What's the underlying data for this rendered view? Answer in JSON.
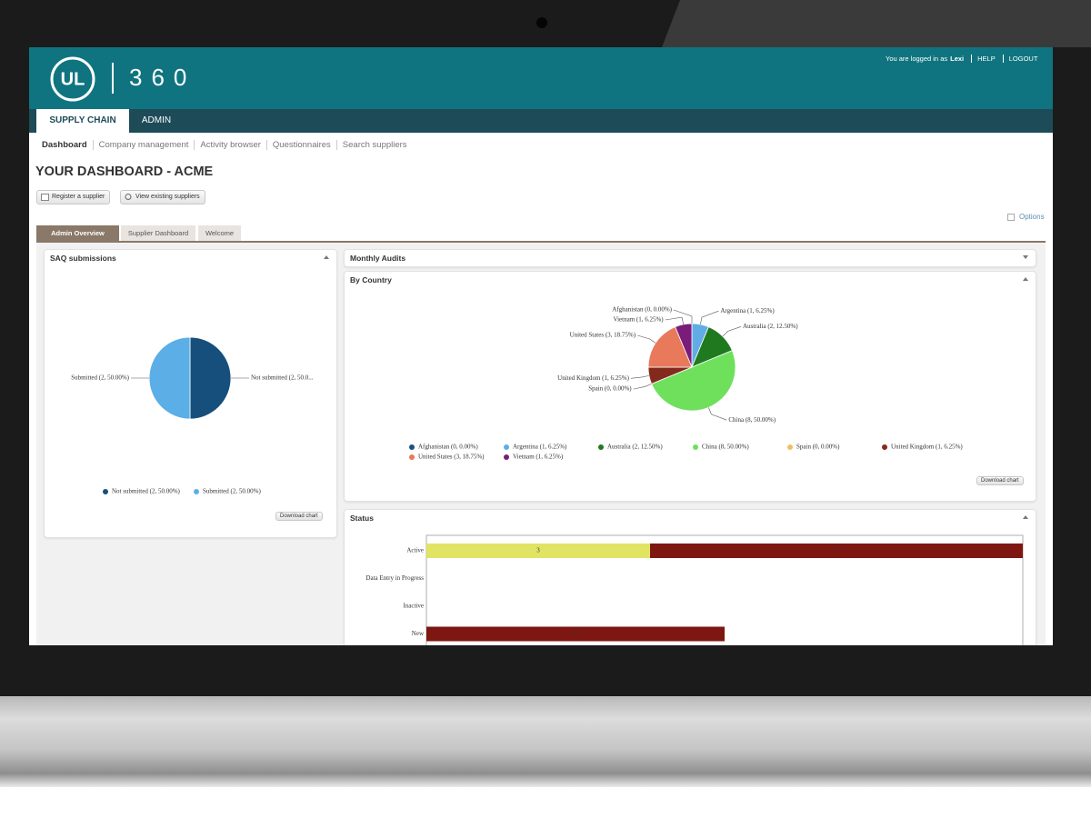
{
  "header": {
    "logo": "UL",
    "product": "360",
    "login_text": "You are logged in as",
    "user": "Lexi",
    "links": [
      "HELP",
      "LOGOUT"
    ]
  },
  "main_tabs": [
    "SUPPLY CHAIN",
    "ADMIN"
  ],
  "sub_nav": [
    "Dashboard",
    "Company management",
    "Activity browser",
    "Questionnaires",
    "Search suppliers"
  ],
  "page_title": "YOUR DASHBOARD - ACME",
  "buttons": [
    "Register a supplier",
    "View existing suppliers"
  ],
  "options": "Options",
  "dashboard_tabs": [
    "Admin Overview",
    "Supplier Dashboard",
    "Welcome"
  ],
  "monthly_audits": "Monthly Audits",
  "download": "Download chart",
  "chart_data": [
    {
      "type": "pie",
      "title": "SAQ submissions",
      "categories": [
        "Not submitted (2, 50.00%)",
        "Submitted (2, 50.00%)"
      ],
      "values": [
        2,
        2
      ],
      "value_labels": [
        "Not submitted (2, 50.0...",
        "Submitted (2, 50.00%)"
      ],
      "colors": [
        "#174f7c",
        "#5caee6"
      ],
      "legend": "bottom"
    },
    {
      "type": "pie",
      "title": "By Country",
      "categories": [
        "Afghanistan (0, 0.00%)",
        "Argentina (1, 6.25%)",
        "Australia (2, 12.50%)",
        "China (8, 50.00%)",
        "Spain (0, 0.00%)",
        "United Kingdom (1, 6.25%)",
        "United States (3, 18.75%)",
        "Vietnam (1, 6.25%)"
      ],
      "values": [
        0,
        1,
        2,
        8,
        0,
        1,
        3,
        1
      ],
      "colors": [
        "#1c4f7d",
        "#62ace6",
        "#1f7a1f",
        "#6fe05c",
        "#eec160",
        "#832a1c",
        "#e8795b",
        "#7a1d7a"
      ],
      "legend": "bottom"
    },
    {
      "type": "bar",
      "title": "Status",
      "horizontal": true,
      "stacked": true,
      "categories": [
        "Active",
        "Data Entry in Progress",
        "Inactive",
        "New"
      ],
      "series": [
        {
          "color": "#e0e462",
          "values": [
            3,
            null,
            null,
            null
          ]
        },
        {
          "color": "#7e1712",
          "values": [
            5,
            null,
            null,
            4
          ]
        }
      ],
      "xlim": [
        0,
        8
      ],
      "data_labels": true
    }
  ]
}
